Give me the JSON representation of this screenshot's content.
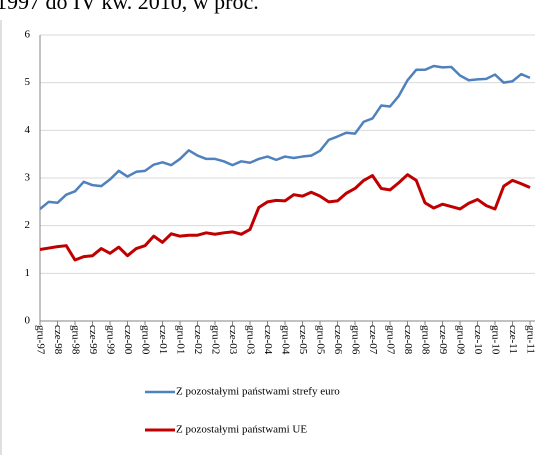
{
  "chart_data": {
    "type": "line",
    "title": "1997 do IV kw. 2010, w proc.",
    "categories": [
      "gru-97",
      null,
      "cze-98",
      null,
      "gru-98",
      null,
      "cze-99",
      null,
      "gru-99",
      null,
      "cze-00",
      null,
      "gru-00",
      null,
      "cze-01",
      null,
      "gru-01",
      null,
      "cze-02",
      null,
      "gru-02",
      null,
      "cze-03",
      null,
      "gru-03",
      null,
      "cze-04",
      null,
      "gru-04",
      null,
      "cze-05",
      null,
      "gru-05",
      null,
      "cze-06",
      null,
      "gru-06",
      null,
      "cze-07",
      null,
      "gru-07",
      null,
      "cze-08",
      null,
      "gru-08",
      null,
      "cze-09",
      null,
      "gru-09",
      null,
      "cze-10",
      null,
      "gru-10",
      null,
      "cze-11",
      null,
      "gru-11"
    ],
    "series": [
      {
        "name": "Z pozostałymi państwami strefy euro",
        "color": "#4f81bd",
        "values": [
          2.35,
          2.5,
          2.48,
          2.65,
          2.72,
          2.92,
          2.85,
          2.83,
          2.97,
          3.15,
          3.03,
          3.13,
          3.15,
          3.28,
          3.33,
          3.27,
          3.4,
          3.58,
          3.47,
          3.4,
          3.4,
          3.35,
          3.27,
          3.35,
          3.32,
          3.4,
          3.45,
          3.38,
          3.45,
          3.42,
          3.45,
          3.47,
          3.57,
          3.8,
          3.87,
          3.95,
          3.93,
          4.18,
          4.25,
          4.52,
          4.5,
          4.72,
          5.05,
          5.27,
          5.27,
          5.35,
          5.32,
          5.33,
          5.15,
          5.05,
          5.07,
          5.08,
          5.17,
          5.0,
          5.03,
          5.18,
          5.1
        ]
      },
      {
        "name": "Z pozostałymi państwami UE",
        "color": "#c00000",
        "values": [
          1.5,
          1.53,
          1.56,
          1.58,
          1.28,
          1.35,
          1.37,
          1.52,
          1.42,
          1.55,
          1.37,
          1.52,
          1.58,
          1.78,
          1.65,
          1.83,
          1.78,
          1.8,
          1.8,
          1.85,
          1.82,
          1.85,
          1.87,
          1.82,
          1.92,
          2.38,
          2.5,
          2.53,
          2.52,
          2.65,
          2.62,
          2.7,
          2.62,
          2.5,
          2.52,
          2.68,
          2.78,
          2.95,
          3.05,
          2.78,
          2.75,
          2.9,
          3.07,
          2.95,
          2.48,
          2.37,
          2.45,
          2.4,
          2.35,
          2.47,
          2.55,
          2.42,
          2.35,
          2.83,
          2.95,
          2.88,
          2.8
        ]
      }
    ],
    "ylim": [
      0,
      6
    ],
    "yticks": [
      0,
      1,
      2,
      3,
      4,
      5,
      6
    ],
    "grid": true
  }
}
